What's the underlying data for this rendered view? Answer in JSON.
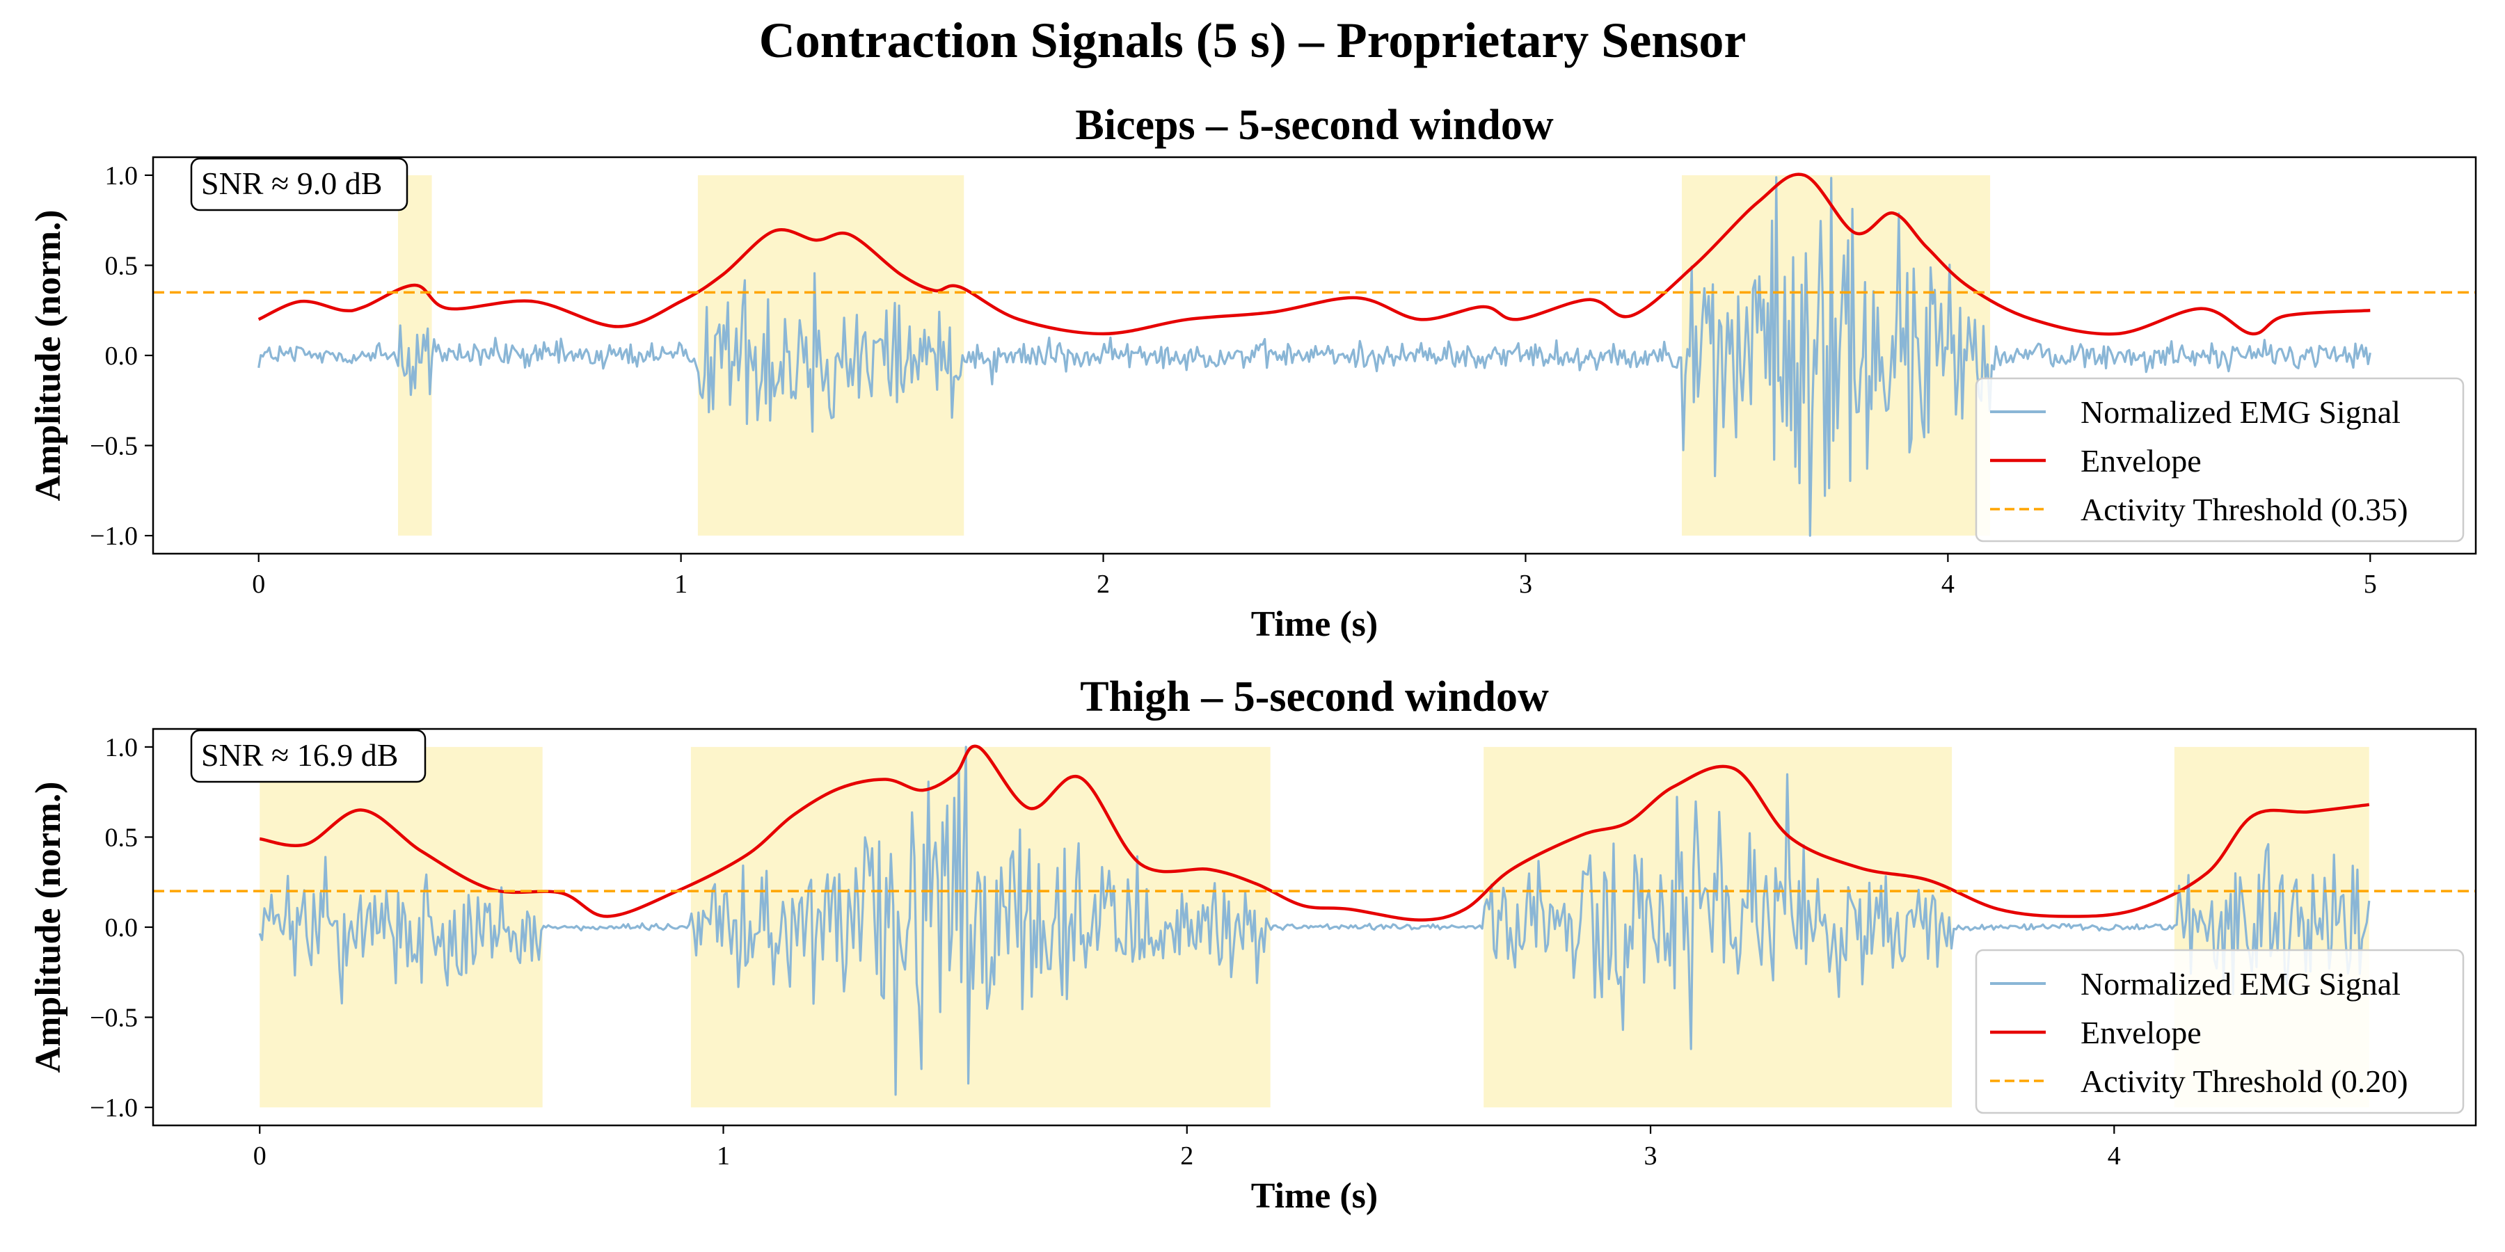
{
  "figure": {
    "suptitle": "Contraction Signals (5 s) – Proprietary Sensor"
  },
  "colors": {
    "signal": "#8ab6d6",
    "envelope": "#e60000",
    "threshold": "#ffa500",
    "active_region": "#fdf3c2",
    "axes": "#000000"
  },
  "chart_data": [
    {
      "type": "line",
      "title": "Biceps – 5-second window",
      "xlabel": "Time (s)",
      "ylabel": "Amplitude (norm.)",
      "xlim": [
        -0.25,
        5.25
      ],
      "ylim": [
        -1.1,
        1.1
      ],
      "xticks": [
        0,
        1,
        2,
        3,
        4,
        5
      ],
      "xtick_labels": [
        "0",
        "1",
        "2",
        "3",
        "4",
        "5"
      ],
      "yticks": [
        -1.0,
        -0.5,
        0.0,
        0.5,
        1.0
      ],
      "ytick_labels": [
        "−1.0",
        "−0.5",
        "0.0",
        "0.5",
        "1.0"
      ],
      "grid": false,
      "annotation": "SNR ≈ 9.0 dB",
      "legend_position": "lower-right",
      "threshold": 0.35,
      "active_regions": [
        [
          0.33,
          0.41
        ],
        [
          1.04,
          1.67
        ],
        [
          3.37,
          4.1
        ]
      ],
      "series": [
        {
          "name": "Normalized EMG Signal",
          "kind": "signal",
          "duration": 5.0,
          "samples": 1000,
          "baseline_noise": 0.07,
          "burst_amplitude_peaks": [
            [
              0.37,
              0.25
            ],
            [
              1.32,
              0.45
            ],
            [
              3.7,
              0.95
            ]
          ]
        },
        {
          "name": "Envelope",
          "kind": "envelope",
          "x": [
            0.0,
            0.1,
            0.2,
            0.25,
            0.37,
            0.45,
            0.65,
            0.85,
            1.0,
            1.1,
            1.22,
            1.32,
            1.4,
            1.52,
            1.6,
            1.66,
            1.8,
            2.0,
            2.2,
            2.4,
            2.6,
            2.75,
            2.9,
            2.98,
            3.15,
            3.25,
            3.4,
            3.55,
            3.66,
            3.78,
            3.87,
            3.95,
            4.05,
            4.2,
            4.4,
            4.6,
            4.72,
            4.8,
            5.0
          ],
          "y": [
            0.2,
            0.3,
            0.25,
            0.27,
            0.39,
            0.26,
            0.3,
            0.16,
            0.3,
            0.45,
            0.69,
            0.64,
            0.67,
            0.45,
            0.36,
            0.38,
            0.2,
            0.12,
            0.2,
            0.24,
            0.32,
            0.2,
            0.27,
            0.2,
            0.31,
            0.22,
            0.5,
            0.85,
            1.0,
            0.68,
            0.79,
            0.6,
            0.38,
            0.2,
            0.12,
            0.26,
            0.12,
            0.22,
            0.25
          ]
        },
        {
          "name": "Activity Threshold (0.35)",
          "kind": "threshold"
        }
      ]
    },
    {
      "type": "line",
      "title": "Thigh – 5-second window",
      "xlabel": "Time (s)",
      "ylabel": "Amplitude (norm.)",
      "xlim": [
        -0.23,
        4.78
      ],
      "ylim": [
        -1.1,
        1.1
      ],
      "xticks": [
        0,
        1,
        2,
        3,
        4
      ],
      "xtick_labels": [
        "0",
        "1",
        "2",
        "3",
        "4"
      ],
      "yticks": [
        -1.0,
        -0.5,
        0.0,
        0.5,
        1.0
      ],
      "ytick_labels": [
        "−1.0",
        "−0.5",
        "0.0",
        "0.5",
        "1.0"
      ],
      "grid": false,
      "annotation": "SNR ≈ 16.9 dB",
      "legend_position": "lower-right",
      "threshold": 0.2,
      "active_regions": [
        [
          0.0,
          0.61
        ],
        [
          0.93,
          2.18
        ],
        [
          2.64,
          3.65
        ],
        [
          4.13,
          4.55
        ]
      ],
      "series": [
        {
          "name": "Normalized EMG Signal",
          "kind": "signal",
          "duration": 4.55,
          "samples": 900,
          "baseline_noise": 0.015,
          "burst_amplitude_peaks": [
            [
              0.25,
              0.35
            ],
            [
              1.45,
              0.75
            ],
            [
              3.1,
              0.6
            ],
            [
              4.4,
              0.4
            ]
          ]
        },
        {
          "name": "Envelope",
          "kind": "envelope",
          "x": [
            0.0,
            0.1,
            0.22,
            0.35,
            0.5,
            0.65,
            0.75,
            0.9,
            1.05,
            1.15,
            1.25,
            1.35,
            1.43,
            1.5,
            1.55,
            1.66,
            1.77,
            1.9,
            2.05,
            2.15,
            2.25,
            2.35,
            2.5,
            2.6,
            2.7,
            2.85,
            2.95,
            3.05,
            3.18,
            3.3,
            3.45,
            3.6,
            3.75,
            3.9,
            4.05,
            4.2,
            4.3,
            4.42,
            4.55
          ],
          "y": [
            0.49,
            0.46,
            0.65,
            0.42,
            0.21,
            0.19,
            0.06,
            0.2,
            0.4,
            0.62,
            0.77,
            0.82,
            0.76,
            0.85,
            1.0,
            0.66,
            0.83,
            0.35,
            0.32,
            0.24,
            0.12,
            0.1,
            0.04,
            0.1,
            0.32,
            0.51,
            0.58,
            0.78,
            0.88,
            0.5,
            0.33,
            0.26,
            0.1,
            0.06,
            0.1,
            0.3,
            0.62,
            0.64,
            0.68
          ]
        },
        {
          "name": "Activity Threshold (0.20)",
          "kind": "threshold"
        }
      ]
    }
  ]
}
